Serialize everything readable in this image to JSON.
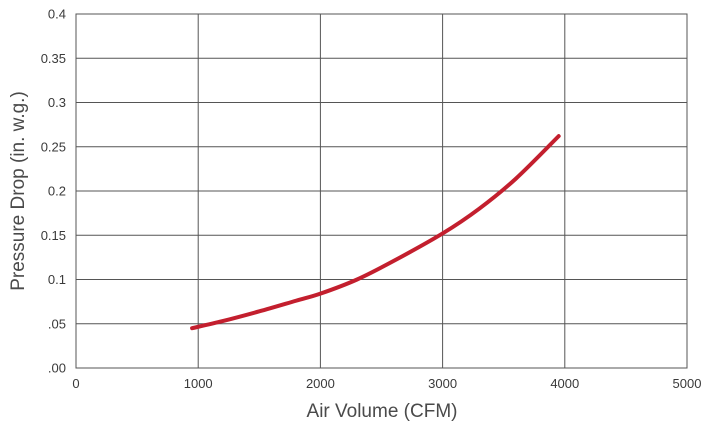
{
  "chart_data": {
    "type": "line",
    "title": "",
    "xlabel": "Air Volume (CFM)",
    "ylabel": "Pressure Drop (in. w.g.)",
    "xlim": [
      0,
      5000
    ],
    "ylim": [
      0,
      0.4
    ],
    "grid": true,
    "x_ticks": [
      {
        "value": 0,
        "label": "0"
      },
      {
        "value": 1000,
        "label": "1000"
      },
      {
        "value": 2000,
        "label": "2000"
      },
      {
        "value": 3000,
        "label": "3000"
      },
      {
        "value": 4000,
        "label": "4000"
      },
      {
        "value": 5000,
        "label": "5000"
      }
    ],
    "y_ticks": [
      {
        "value": 0,
        "label": ".00"
      },
      {
        "value": 0.05,
        "label": ".05"
      },
      {
        "value": 0.1,
        "label": "0.1"
      },
      {
        "value": 0.15,
        "label": "0.15"
      },
      {
        "value": 0.2,
        "label": "0.2"
      },
      {
        "value": 0.25,
        "label": "0.25"
      },
      {
        "value": 0.3,
        "label": "0.3"
      },
      {
        "value": 0.35,
        "label": "0.35"
      },
      {
        "value": 0.4,
        "label": "0.4"
      }
    ],
    "series": [
      {
        "color": "#c31f2e",
        "x": [
          950,
          1200,
          1500,
          1800,
          2000,
          2300,
          2600,
          3000,
          3300,
          3600,
          3950
        ],
        "y": [
          0.045,
          0.053,
          0.064,
          0.076,
          0.084,
          0.1,
          0.121,
          0.152,
          0.18,
          0.214,
          0.262
        ]
      }
    ]
  }
}
